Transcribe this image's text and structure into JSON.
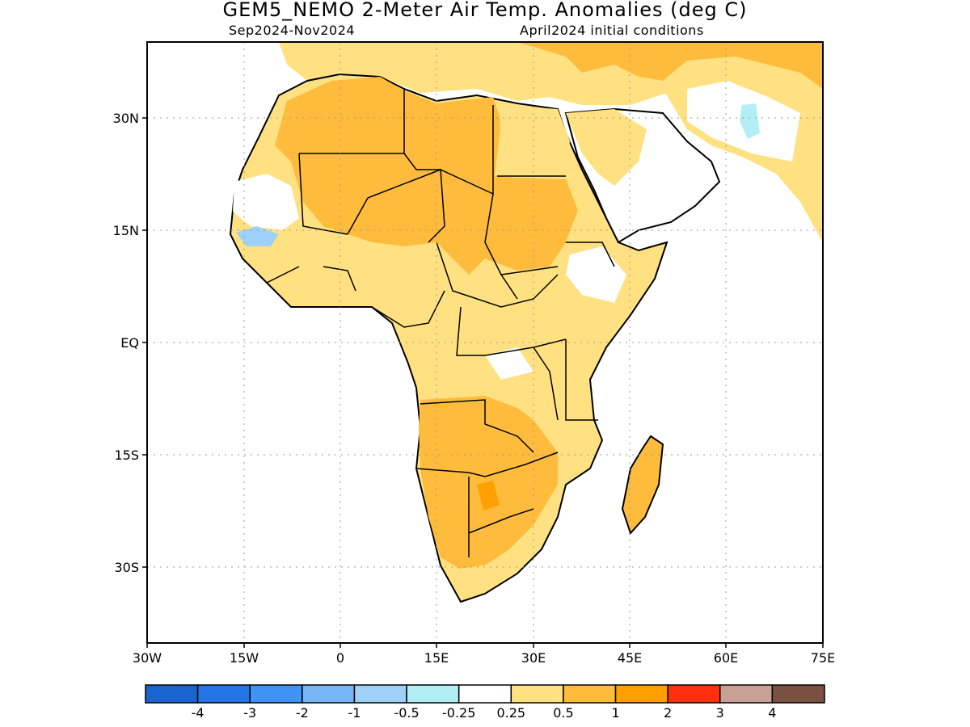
{
  "title": "GEM5_NEMO 2-Meter Air Temp. Anomalies (deg C)",
  "period": "Sep2024-Nov2024",
  "init": "April2024 initial conditions",
  "y_ticks": [
    "30N",
    "15N",
    "EQ",
    "15S",
    "30S"
  ],
  "x_ticks": [
    "30W",
    "15W",
    "0",
    "15E",
    "30E",
    "45E",
    "60E",
    "75E"
  ],
  "colorbar": {
    "colors": [
      "#1a64d0",
      "#2476e6",
      "#3f93f2",
      "#76b6f6",
      "#9dd1f7",
      "#b1eef6",
      "#ffffff",
      "#ffe182",
      "#ffbc3c",
      "#ffa000",
      "#ff3010",
      "#c8a096",
      "#7a5040"
    ],
    "labels": [
      "-4",
      "-3",
      "-2",
      "-1",
      "-0.5",
      "-0.25",
      "0.25",
      "0.5",
      "1",
      "2",
      "3",
      "4"
    ]
  },
  "legend_title": ""
}
